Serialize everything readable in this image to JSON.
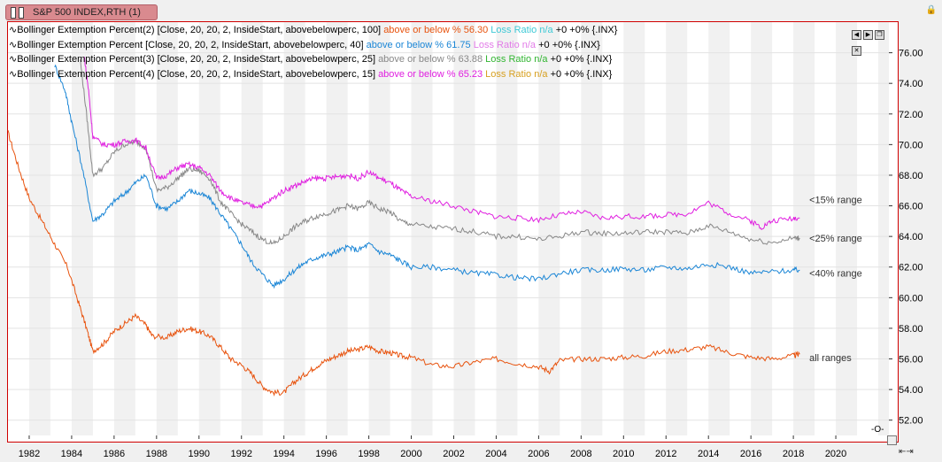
{
  "window": {
    "title": "S&P 500 INDEX,RTH (1)",
    "lock_icon": "lock-icon"
  },
  "legend": [
    {
      "indicator": "Bollinger Extemption Percent(2) [Close, 20, 20, 2, InsideStart, abovebelowperc, 100]",
      "above_label": "above or below %",
      "above_value": "56.30",
      "loss_label": "Loss Ratio n/a",
      "tail": "+0 +0% {.INX}",
      "above_color": "#e8530e",
      "loss_color": "#3ec9d6"
    },
    {
      "indicator": "Bollinger Extemption Percent [Close, 20, 20, 2, InsideStart, abovebelowperc, 40]",
      "above_label": "above or below %",
      "above_value": "61.75",
      "loss_label": "Loss Ratio n/a",
      "tail": "+0 +0% {.INX}",
      "above_color": "#1b86d6",
      "loss_color": "#e27be8"
    },
    {
      "indicator": "Bollinger Extemption Percent(3) [Close, 20, 20, 2, InsideStart, abovebelowperc, 25]",
      "above_label": "above or below %",
      "above_value": "63.88",
      "loss_label": "Loss Ratio n/a",
      "tail": "+0 +0% {.INX}",
      "above_color": "#888888",
      "loss_color": "#31b531"
    },
    {
      "indicator": "Bollinger Extemption Percent(4) [Close, 20, 20, 2, InsideStart, abovebelowperc, 15]",
      "above_label": "above or below %",
      "above_value": "65.23",
      "loss_label": "Loss Ratio n/a",
      "tail": "+0 +0% {.INX}",
      "above_color": "#e020e0",
      "loss_color": "#d7a020"
    }
  ],
  "chart_data": {
    "type": "line",
    "xlim": [
      1981.0,
      2022.5
    ],
    "ylim": [
      51.0,
      78.0
    ],
    "x_ticks": [
      "1982",
      "1984",
      "1986",
      "1988",
      "1990",
      "1992",
      "1994",
      "1996",
      "1998",
      "2000",
      "2002",
      "2004",
      "2006",
      "2008",
      "2010",
      "2012",
      "2014",
      "2016",
      "2018",
      "2020"
    ],
    "x_tick_values": [
      1982,
      1984,
      1986,
      1988,
      1990,
      1992,
      1994,
      1996,
      1998,
      2000,
      2002,
      2004,
      2006,
      2008,
      2010,
      2012,
      2014,
      2016,
      2018,
      2020
    ],
    "y_ticks": [
      "52.00",
      "54.00",
      "56.00",
      "58.00",
      "60.00",
      "62.00",
      "64.00",
      "66.00",
      "68.00",
      "70.00",
      "72.00",
      "74.00",
      "76.00"
    ],
    "y_tick_values": [
      52,
      54,
      56,
      58,
      60,
      62,
      64,
      66,
      68,
      70,
      72,
      74,
      76
    ],
    "grid": "horizontal lines + alternating yearly bands",
    "series": [
      {
        "key": "s100",
        "color": "#e8530e",
        "label": "all ranges",
        "label_at": [
          2018.5,
          56.1
        ],
        "x": [
          1981.0,
          1981.5,
          1982.0,
          1982.6,
          1983.2,
          1983.8,
          1984.3,
          1984.7,
          1985.0,
          1985.5,
          1986.0,
          1986.5,
          1987.0,
          1987.5,
          1987.8,
          1988.5,
          1989.0,
          1989.5,
          1990.0,
          1990.5,
          1991.0,
          1991.5,
          1992.0,
          1992.5,
          1993.0,
          1993.5,
          1994.0,
          1994.5,
          1995.0,
          1995.5,
          1996.0,
          1996.5,
          1997.0,
          1997.5,
          1998.0,
          1998.5,
          1999.0,
          1999.5,
          2000.0,
          2001.0,
          2002.0,
          2003.0,
          2004.0,
          2005.0,
          2006.0,
          2006.5,
          2007.0,
          2008.0,
          2009.0,
          2010.0,
          2011.0,
          2012.0,
          2013.0,
          2014.0,
          2015.0,
          2016.0,
          2017.0,
          2018.0,
          2018.3
        ],
        "y": [
          70.8,
          68.5,
          66.5,
          65.0,
          63.5,
          62.0,
          59.8,
          58.0,
          56.5,
          57.0,
          57.8,
          58.3,
          58.8,
          58.2,
          57.5,
          57.4,
          57.8,
          58.0,
          57.8,
          57.5,
          56.8,
          56.0,
          55.6,
          55.0,
          54.2,
          53.8,
          53.8,
          54.5,
          55.0,
          55.5,
          55.9,
          56.2,
          56.5,
          56.6,
          56.8,
          56.5,
          56.4,
          56.2,
          56.1,
          55.6,
          55.5,
          55.8,
          56.0,
          55.7,
          55.5,
          55.2,
          55.9,
          56.0,
          56.0,
          56.1,
          56.2,
          56.5,
          56.6,
          56.8,
          56.4,
          56.1,
          56.0,
          56.2,
          56.3
        ]
      },
      {
        "key": "s40",
        "color": "#1b86d6",
        "label": "<40% range",
        "label_at": [
          2018.5,
          61.6
        ],
        "x": [
          1983.2,
          1983.7,
          1984.0,
          1984.5,
          1985.0,
          1985.5,
          1986.0,
          1986.5,
          1987.0,
          1987.5,
          1988.0,
          1988.5,
          1989.0,
          1989.5,
          1990.0,
          1990.5,
          1991.0,
          1991.5,
          1992.0,
          1992.5,
          1993.0,
          1993.5,
          1994.0,
          1994.5,
          1995.0,
          1995.5,
          1996.0,
          1996.5,
          1997.0,
          1997.5,
          1998.0,
          1998.5,
          1999.0,
          1999.5,
          2000.0,
          2001.0,
          2002.0,
          2003.0,
          2004.0,
          2005.0,
          2006.0,
          2007.0,
          2008.0,
          2009.0,
          2010.0,
          2011.0,
          2012.0,
          2013.0,
          2014.0,
          2015.0,
          2016.0,
          2017.0,
          2018.0,
          2018.3
        ],
        "y": [
          75.2,
          73.5,
          71.5,
          68.5,
          65.0,
          65.5,
          66.3,
          66.8,
          67.5,
          68.0,
          66.0,
          65.8,
          66.3,
          67.0,
          66.8,
          66.5,
          65.5,
          64.5,
          63.5,
          62.3,
          61.5,
          60.8,
          61.2,
          61.8,
          62.3,
          62.6,
          62.8,
          63.0,
          63.3,
          63.1,
          63.5,
          63.0,
          62.8,
          62.4,
          62.0,
          62.0,
          61.8,
          61.6,
          61.5,
          61.3,
          61.2,
          61.6,
          61.8,
          61.8,
          61.9,
          61.8,
          62.0,
          61.9,
          62.2,
          62.0,
          61.6,
          61.7,
          61.8,
          61.8
        ]
      },
      {
        "key": "s25",
        "color": "#888888",
        "label": "<25% range",
        "label_at": [
          2018.5,
          63.9
        ],
        "x": [
          1984.4,
          1984.7,
          1985.0,
          1985.5,
          1986.0,
          1986.5,
          1987.0,
          1987.5,
          1988.0,
          1988.5,
          1989.0,
          1989.5,
          1990.0,
          1990.5,
          1991.0,
          1991.5,
          1992.0,
          1992.5,
          1993.0,
          1993.5,
          1994.0,
          1994.5,
          1995.0,
          1995.5,
          1996.0,
          1996.5,
          1997.0,
          1997.5,
          1998.0,
          1998.5,
          1999.0,
          1999.5,
          2000.0,
          2001.0,
          2002.0,
          2003.0,
          2004.0,
          2005.0,
          2006.0,
          2007.0,
          2008.0,
          2009.0,
          2010.0,
          2011.0,
          2012.0,
          2013.0,
          2014.0,
          2015.0,
          2016.0,
          2017.0,
          2018.0,
          2018.3
        ],
        "y": [
          75.6,
          72.0,
          68.0,
          68.5,
          69.5,
          70.0,
          70.2,
          69.8,
          67.0,
          67.2,
          67.8,
          68.4,
          68.3,
          67.8,
          66.3,
          65.5,
          64.8,
          64.3,
          63.8,
          63.5,
          64.0,
          64.6,
          65.0,
          65.3,
          65.5,
          65.7,
          66.0,
          65.8,
          66.2,
          65.8,
          65.6,
          65.0,
          64.8,
          64.6,
          64.5,
          64.3,
          64.0,
          64.0,
          63.8,
          64.0,
          64.3,
          64.2,
          64.2,
          64.3,
          64.3,
          64.2,
          64.7,
          64.3,
          63.8,
          63.6,
          63.9,
          63.9
        ]
      },
      {
        "key": "s15",
        "color": "#e020e0",
        "label": "<15% range",
        "label_at": [
          2018.5,
          66.4
        ],
        "x": [
          1984.6,
          1984.8,
          1985.0,
          1985.5,
          1986.0,
          1986.5,
          1987.0,
          1987.5,
          1988.0,
          1988.5,
          1989.0,
          1989.5,
          1990.0,
          1990.5,
          1991.0,
          1991.5,
          1992.0,
          1992.5,
          1993.0,
          1993.5,
          1994.0,
          1994.5,
          1995.0,
          1995.5,
          1996.0,
          1996.5,
          1997.0,
          1997.5,
          1998.0,
          1998.5,
          1999.0,
          1999.5,
          2000.0,
          2001.0,
          2002.0,
          2003.0,
          2004.0,
          2005.0,
          2006.0,
          2007.0,
          2008.0,
          2009.0,
          2010.0,
          2011.0,
          2012.0,
          2013.0,
          2014.0,
          2015.0,
          2016.0,
          2016.5,
          2017.0,
          2018.0,
          2018.3
        ],
        "y": [
          75.7,
          73.5,
          70.5,
          70.0,
          70.0,
          70.2,
          70.3,
          69.8,
          67.8,
          68.0,
          68.5,
          68.7,
          68.5,
          68.0,
          67.0,
          66.5,
          66.2,
          66.0,
          66.0,
          66.5,
          67.0,
          67.3,
          67.6,
          67.8,
          67.8,
          67.9,
          68.0,
          67.8,
          68.2,
          67.8,
          67.5,
          67.0,
          66.6,
          66.3,
          66.0,
          65.6,
          65.3,
          65.2,
          65.1,
          65.4,
          65.6,
          65.2,
          65.3,
          65.3,
          65.4,
          65.5,
          66.2,
          65.5,
          65.0,
          64.6,
          65.0,
          65.2,
          65.2
        ]
      }
    ]
  },
  "axis_controls": {
    "zoom_label": "-O-"
  }
}
